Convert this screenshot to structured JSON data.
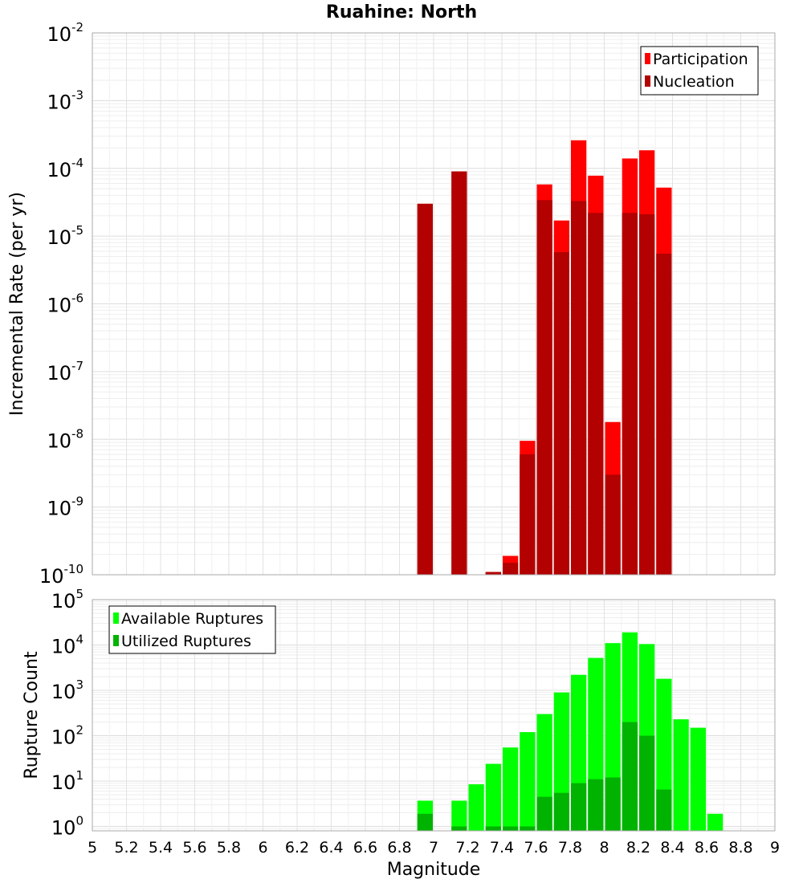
{
  "title": "Ruahine: North",
  "xlabel": "Magnitude",
  "x_ticks": [
    "5",
    "5.2",
    "5.4",
    "5.6",
    "5.8",
    "6",
    "6.2",
    "6.4",
    "6.6",
    "6.8",
    "7",
    "7.2",
    "7.4",
    "7.6",
    "7.8",
    "8",
    "8.2",
    "8.4",
    "8.6",
    "8.8",
    "9"
  ],
  "colors": {
    "participation": "#ff0000",
    "nucleation": "#b30000",
    "available": "#00ff00",
    "utilized": "#00b300"
  },
  "chart_data": [
    {
      "type": "bar",
      "name": "rate",
      "ylabel": "Incremental Rate (per yr)",
      "y_scale": "log",
      "ylim": [
        1e-10,
        0.01
      ],
      "y_tick_exponents": [
        "-2",
        "-3",
        "-4",
        "-5",
        "-6",
        "-7",
        "-8",
        "-9",
        "-10"
      ],
      "xlim": [
        5,
        9
      ],
      "bin_width": 0.1,
      "legend": [
        "Participation",
        "Nucleation"
      ],
      "legend_position": "top-right",
      "x": [
        6.95,
        7.15,
        7.35,
        7.45,
        7.55,
        7.65,
        7.75,
        7.85,
        7.95,
        8.05,
        8.15,
        8.25,
        8.35
      ],
      "series": [
        {
          "name": "Participation",
          "values": [
            3e-05,
            9e-05,
            1.1e-10,
            1.9e-10,
            9.5e-09,
            5.8e-05,
            1.7e-05,
            0.00026,
            7.8e-05,
            1.8e-08,
            0.00014,
            0.000185,
            5.2e-05
          ]
        },
        {
          "name": "Nucleation",
          "values": [
            3e-05,
            9e-05,
            1.1e-10,
            1.5e-10,
            6e-09,
            3.4e-05,
            5.8e-06,
            3.3e-05,
            2.2e-05,
            3e-09,
            2.2e-05,
            2.1e-05,
            5.5e-06
          ]
        }
      ]
    },
    {
      "type": "bar",
      "name": "count",
      "ylabel": "Rupture Count",
      "y_scale": "log",
      "ylim": [
        0.8,
        100000
      ],
      "y_tick_exponents": [
        "5",
        "4",
        "3",
        "2",
        "1",
        "0"
      ],
      "xlim": [
        5,
        9
      ],
      "bin_width": 0.1,
      "legend": [
        "Available Ruptures",
        "Utilized Ruptures"
      ],
      "legend_position": "top-left",
      "x": [
        6.95,
        7.15,
        7.25,
        7.35,
        7.45,
        7.55,
        7.65,
        7.75,
        7.85,
        7.95,
        8.05,
        8.15,
        8.25,
        8.35,
        8.45,
        8.55,
        8.65
      ],
      "series": [
        {
          "name": "Available Ruptures",
          "values": [
            3.7,
            3.7,
            8.5,
            24,
            55,
            120,
            300,
            900,
            2200,
            5200,
            11000,
            19000,
            10500,
            1800,
            230,
            150,
            1.9
          ]
        },
        {
          "name": "Utilized Ruptures",
          "values": [
            1.9,
            1.0,
            null,
            1.0,
            1.0,
            1.0,
            4.5,
            5.5,
            9.0,
            11,
            12,
            200,
            100,
            6.5,
            null,
            null,
            null
          ]
        }
      ]
    }
  ]
}
